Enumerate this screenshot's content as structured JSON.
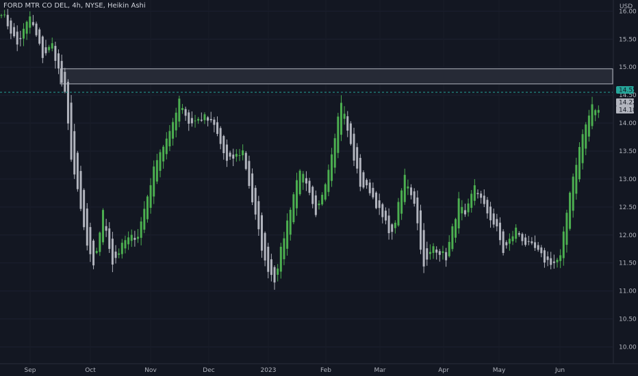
{
  "header": {
    "symbol_line": "FORD MTR CO DEL, 4h, NYSE, Heikin Ashi"
  },
  "price_axis": {
    "currency": "USD",
    "ticks": [
      "16.00",
      "15.50",
      "15.00",
      "14.50",
      "14.00",
      "13.50",
      "13.00",
      "12.50",
      "12.00",
      "11.50",
      "11.00",
      "10.50",
      "10.00"
    ]
  },
  "time_axis": {
    "labels": [
      "Sep",
      "Oct",
      "Nov",
      "Dec",
      "2023",
      "Feb",
      "Mar",
      "Apr",
      "May",
      "Jun"
    ]
  },
  "price_labels": {
    "line_level": "14.55",
    "upper_value": "14.22",
    "lower_value": "14.18"
  },
  "colors": {
    "background": "#131722",
    "bullish": "#4caf50",
    "bearish": "#b2b5be",
    "line": "#26a69a",
    "zone_fill": "#2a2e39",
    "zone_border": "#b2b5be"
  },
  "chart_data": {
    "type": "candlestick",
    "style": "Heikin Ashi",
    "interval": "4h",
    "ylim": [
      9.7,
      16.2
    ],
    "x_labels": [
      "Sep",
      "Oct",
      "Nov",
      "Dec",
      "2023",
      "Feb",
      "Mar",
      "Apr",
      "May",
      "Jun"
    ],
    "price_line": 14.55,
    "resistance_zone": [
      14.7,
      14.97
    ],
    "last_values": [
      14.22,
      14.18
    ],
    "close_path": [
      [
        0,
        16.0
      ],
      [
        5,
        15.4
      ],
      [
        9,
        15.9
      ],
      [
        13,
        15.2
      ],
      [
        16,
        15.4
      ],
      [
        20,
        14.5
      ],
      [
        22,
        13.4
      ],
      [
        27,
        11.8
      ],
      [
        29,
        11.4
      ],
      [
        32,
        12.4
      ],
      [
        35,
        11.5
      ],
      [
        39,
        11.9
      ],
      [
        43,
        12.0
      ],
      [
        49,
        13.4
      ],
      [
        53,
        13.8
      ],
      [
        56,
        14.45
      ],
      [
        59,
        14.0
      ],
      [
        64,
        14.1
      ],
      [
        67,
        13.95
      ],
      [
        71,
        13.3
      ],
      [
        76,
        13.5
      ],
      [
        79,
        12.6
      ],
      [
        83,
        11.5
      ],
      [
        86,
        11.2
      ],
      [
        91,
        12.5
      ],
      [
        94,
        13.2
      ],
      [
        97,
        12.7
      ],
      [
        99,
        12.3
      ],
      [
        103,
        13.2
      ],
      [
        107,
        14.4
      ],
      [
        110,
        13.6
      ],
      [
        113,
        12.9
      ],
      [
        116,
        12.8
      ],
      [
        120,
        12.3
      ],
      [
        123,
        12.0
      ],
      [
        127,
        13.05
      ],
      [
        130,
        12.6
      ],
      [
        133,
        11.4
      ],
      [
        136,
        11.8
      ],
      [
        140,
        11.6
      ],
      [
        144,
        12.6
      ],
      [
        146,
        12.3
      ],
      [
        149,
        12.9
      ],
      [
        152,
        12.5
      ],
      [
        156,
        12.1
      ],
      [
        158,
        11.7
      ],
      [
        162,
        12.1
      ],
      [
        165,
        11.85
      ],
      [
        168,
        11.75
      ],
      [
        171,
        11.55
      ],
      [
        174,
        11.5
      ],
      [
        176,
        11.6
      ],
      [
        179,
        12.8
      ],
      [
        183,
        13.8
      ],
      [
        186,
        14.3
      ],
      [
        188,
        14.2
      ]
    ]
  }
}
